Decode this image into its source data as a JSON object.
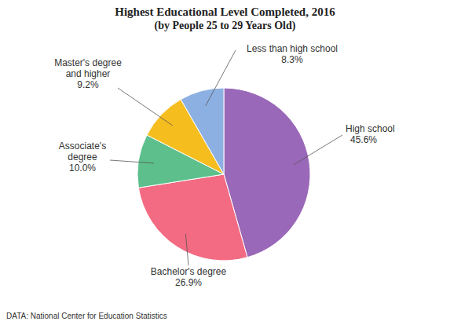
{
  "chart_data": {
    "type": "pie",
    "title": "Highest Educational Level Completed, 2016",
    "subtitle": "(by People 25 to 29 Years Old)",
    "source": "DATA: National Center for Education Statistics",
    "categories": [
      "High school",
      "Bachelor's degree",
      "Associate's degree",
      "Master's degree and higher",
      "Less than high school"
    ],
    "values": [
      45.6,
      26.9,
      10.0,
      9.2,
      8.3
    ],
    "value_labels": [
      "45.6%",
      "26.9%",
      "10.0%",
      "9.2%",
      "8.3%"
    ],
    "colors": [
      "#9a68b8",
      "#f26b82",
      "#5cbf8c",
      "#f6bd1f",
      "#8db0e2"
    ],
    "data_labels": true
  }
}
